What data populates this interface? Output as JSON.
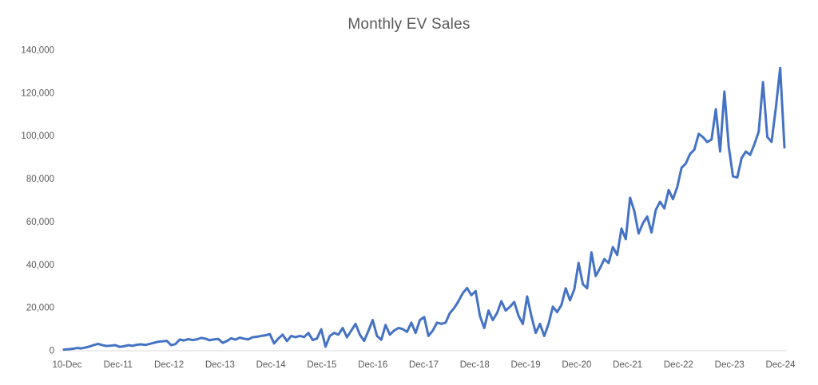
{
  "title": "Monthly EV Sales",
  "colors": {
    "line": "#4472C4",
    "axis_line": "#D9D9D9",
    "label_text": "#595959",
    "title_text": "#595959",
    "background": "#FFFFFF"
  },
  "chart_data": {
    "type": "line",
    "title": "Monthly EV Sales",
    "xlabel": "",
    "ylabel": "",
    "x_start": "Dec-2010",
    "x_end": "Dec-2024",
    "interval": "monthly",
    "ylim": [
      0,
      140000
    ],
    "y_tick_step": 20000,
    "grid": false,
    "legend": false,
    "x_tick_labels": [
      "10-Dec",
      "Dec-11",
      "Dec-12",
      "Dec-13",
      "Dec-14",
      "Dec-15",
      "Dec-16",
      "Dec-17",
      "Dec-18",
      "Dec-19",
      "Dec-20",
      "Dec-21",
      "Dec-22",
      "Dec-23",
      "Dec-24"
    ],
    "y_tick_labels": [
      "0",
      "20,000",
      "40,000",
      "60,000",
      "80,000",
      "100,000",
      "120,000",
      "140,000"
    ],
    "values": [
      350,
      500,
      700,
      1100,
      900,
      1300,
      1800,
      2500,
      3000,
      2400,
      2000,
      2200,
      2400,
      1600,
      1900,
      2400,
      2100,
      2600,
      2800,
      2500,
      3000,
      3500,
      4000,
      4200,
      4400,
      2400,
      2900,
      5000,
      4600,
      5200,
      4800,
      5100,
      5800,
      5400,
      4700,
      5100,
      5300,
      3500,
      4300,
      5600,
      5000,
      5900,
      5400,
      5100,
      6100,
      6300,
      6700,
      7000,
      7600,
      3200,
      5500,
      7300,
      4300,
      6700,
      6100,
      6700,
      6200,
      8100,
      4800,
      5500,
      9800,
      1700,
      6700,
      8100,
      7300,
      10400,
      6100,
      9200,
      12300,
      7300,
      4400,
      9100,
      14100,
      6700,
      4900,
      11800,
      7300,
      9200,
      10400,
      9900,
      8600,
      12900,
      8100,
      14100,
      15500,
      6700,
      9200,
      12900,
      12300,
      12900,
      17400,
      19700,
      22900,
      26600,
      29000,
      25700,
      27600,
      16000,
      10400,
      18500,
      14100,
      17400,
      22900,
      18500,
      20300,
      22500,
      16100,
      12300,
      25100,
      16000,
      8100,
      12300,
      6700,
      12300,
      20300,
      17800,
      21100,
      28900,
      23300,
      28400,
      40700,
      30800,
      28900,
      45600,
      34600,
      38300,
      42500,
      40700,
      48100,
      44400,
      56700,
      51800,
      71100,
      64800,
      54400,
      59200,
      62300,
      54900,
      65400,
      69200,
      66100,
      74700,
      70400,
      76000,
      85000,
      87000,
      91500,
      93500,
      100800,
      99300,
      97000,
      98200,
      112300,
      92600,
      120500,
      95000,
      81000,
      80500,
      89500,
      92600,
      91000,
      96000,
      101900,
      124900,
      99400,
      97100,
      113000,
      131500,
      94500
    ]
  }
}
